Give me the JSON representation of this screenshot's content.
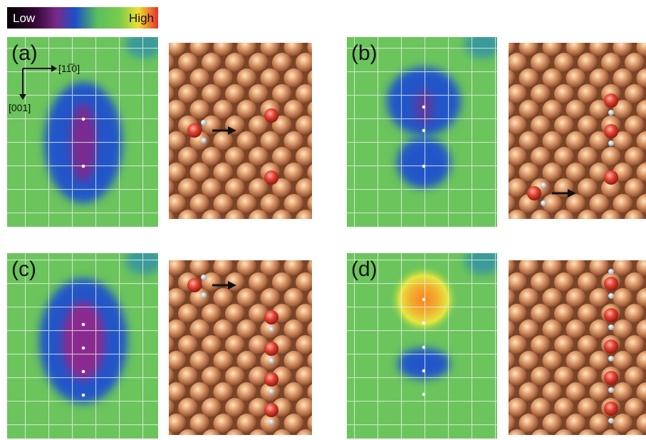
{
  "colorbar": {
    "low": "Low",
    "high": "High"
  },
  "axes": {
    "x": "[11̅0]",
    "y": "[001]"
  },
  "panels": [
    {
      "label": "(a)"
    },
    {
      "label": "(b)"
    },
    {
      "label": "(c)"
    },
    {
      "label": "(d)"
    }
  ]
}
